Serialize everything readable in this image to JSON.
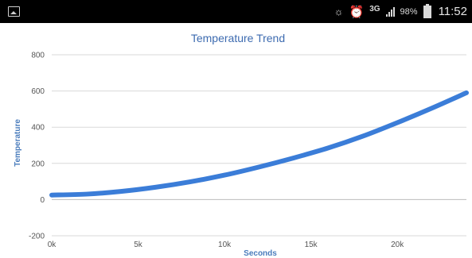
{
  "status_bar": {
    "left_icon": "picture-icon",
    "icons": [
      "eye-icon",
      "alarm-icon",
      "signal-icon",
      "battery-icon"
    ],
    "network": "3G",
    "battery_text": "98%",
    "time": "11:52"
  },
  "chart_data": {
    "type": "line",
    "title": "Temperature Trend",
    "xlabel": "Seconds",
    "ylabel": "Temperature",
    "xlim": [
      0,
      24000
    ],
    "ylim": [
      -200,
      800
    ],
    "x_ticks": [
      0,
      5000,
      10000,
      15000,
      20000
    ],
    "x_tick_labels": [
      "0k",
      "5k",
      "10k",
      "15k",
      "20k"
    ],
    "y_ticks": [
      -200,
      0,
      200,
      400,
      600,
      800
    ],
    "y_tick_labels": [
      "-200",
      "0",
      "200",
      "400",
      "600",
      "800"
    ],
    "grid": true,
    "legend": "none",
    "series": [
      {
        "color": "#3b7dd8",
        "x": [
          0,
          2000,
          4000,
          6000,
          8000,
          10000,
          12000,
          14000,
          16000,
          18000,
          20000,
          22000,
          24000
        ],
        "y": [
          25,
          30,
          45,
          68,
          98,
          135,
          180,
          230,
          285,
          350,
          425,
          505,
          590
        ]
      }
    ],
    "colors": {
      "title": "#3d6bb0",
      "axis_label": "#4a7cbc",
      "tick_label": "#555555",
      "grid": "#d9d9d9",
      "zero_line": "#bdbdbd"
    }
  }
}
